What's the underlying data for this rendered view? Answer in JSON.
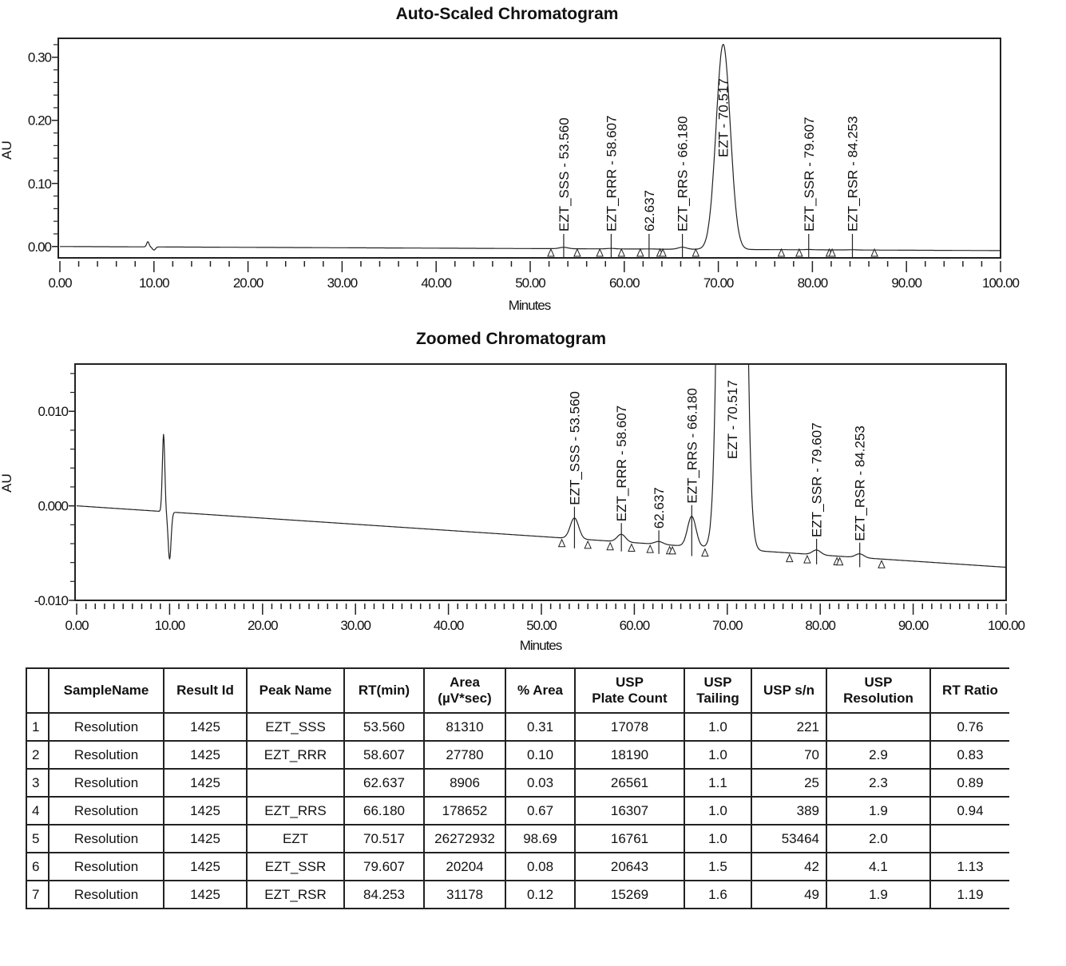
{
  "chart_data": [
    {
      "type": "line",
      "title": "Auto-Scaled Chromatogram",
      "xlabel": "Minutes",
      "ylabel": "AU",
      "xlim": [
        0,
        100
      ],
      "ylim": [
        -0.018,
        0.33
      ],
      "xticks": [
        "0.00",
        "10.00",
        "20.00",
        "30.00",
        "40.00",
        "50.00",
        "60.00",
        "70.00",
        "80.00",
        "90.00",
        "100.00"
      ],
      "yticks": [
        {
          "v": 0.0,
          "label": "0.00"
        },
        {
          "v": 0.1,
          "label": "0.10"
        },
        {
          "v": 0.2,
          "label": "0.20"
        },
        {
          "v": 0.3,
          "label": "0.30"
        }
      ],
      "grid": false,
      "baseline_au": [
        0.0,
        -0.0065
      ],
      "peaks": [
        {
          "label": "EZT_SSS - 53.560",
          "rt": 53.56,
          "height": 0.0022
        },
        {
          "label": "EZT_RRR - 58.607",
          "rt": 58.607,
          "height": 0.0008
        },
        {
          "label": "62.637",
          "rt": 62.637,
          "height": 0.0003
        },
        {
          "label": "EZT_RRS - 66.180",
          "rt": 66.18,
          "height": 0.0032
        },
        {
          "label": "EZT - 70.517",
          "rt": 70.517,
          "height": 0.325
        },
        {
          "label": "EZT_SSR - 79.607",
          "rt": 79.607,
          "height": 0.0005
        },
        {
          "label": "EZT_RSR - 84.253",
          "rt": 84.253,
          "height": 0.0004
        }
      ],
      "integration_marks": [
        52.2,
        55.0,
        57.4,
        59.7,
        61.7,
        63.8,
        64.1,
        67.6,
        76.7,
        78.6,
        81.8,
        82.1,
        86.6
      ]
    },
    {
      "type": "line",
      "title": "Zoomed Chromatogram",
      "xlabel": "Minutes",
      "ylabel": "AU",
      "xlim": [
        0,
        100
      ],
      "ylim": [
        -0.01,
        0.015
      ],
      "xticks": [
        "0.00",
        "10.00",
        "20.00",
        "30.00",
        "40.00",
        "50.00",
        "60.00",
        "70.00",
        "80.00",
        "90.00",
        "100.00"
      ],
      "yticks": [
        {
          "v": -0.01,
          "label": "-0.010"
        },
        {
          "v": 0.0,
          "label": "0.000"
        },
        {
          "v": 0.01,
          "label": "0.010"
        }
      ],
      "grid": false,
      "baseline_au": [
        0.0,
        -0.0065
      ],
      "peaks": [
        {
          "label": "EZT_SSS - 53.560",
          "rt": 53.56,
          "height": 0.0022
        },
        {
          "label": "EZT_RRR - 58.607",
          "rt": 58.607,
          "height": 0.0008
        },
        {
          "label": "62.637",
          "rt": 62.637,
          "height": 0.0003
        },
        {
          "label": "EZT_RRS - 66.180",
          "rt": 66.18,
          "height": 0.0032
        },
        {
          "label": "EZT - 70.517",
          "rt": 70.517,
          "height": 0.325
        },
        {
          "label": "EZT_SSR - 79.607",
          "rt": 79.607,
          "height": 0.0005
        },
        {
          "label": "EZT_RSR - 84.253",
          "rt": 84.253,
          "height": 0.0004
        }
      ],
      "integration_marks": [
        52.2,
        55.0,
        57.4,
        59.7,
        61.7,
        63.8,
        64.1,
        67.6,
        76.7,
        78.6,
        81.8,
        82.1,
        86.6
      ]
    }
  ],
  "table": {
    "headers": [
      "",
      "SampleName",
      "Result Id",
      "Peak Name",
      "RT(min)",
      "Area\n(µV*sec)",
      "% Area",
      "USP\nPlate Count",
      "USP\nTailing",
      "USP s/n",
      "USP\nResolution",
      "RT Ratio"
    ],
    "rows": [
      [
        "1",
        "Resolution",
        "1425",
        "EZT_SSS",
        "53.560",
        "81310",
        "0.31",
        "17078",
        "1.0",
        "221",
        "",
        "0.76"
      ],
      [
        "2",
        "Resolution",
        "1425",
        "EZT_RRR",
        "58.607",
        "27780",
        "0.10",
        "18190",
        "1.0",
        "70",
        "2.9",
        "0.83"
      ],
      [
        "3",
        "Resolution",
        "1425",
        "",
        "62.637",
        "8906",
        "0.03",
        "26561",
        "1.1",
        "25",
        "2.3",
        "0.89"
      ],
      [
        "4",
        "Resolution",
        "1425",
        "EZT_RRS",
        "66.180",
        "178652",
        "0.67",
        "16307",
        "1.0",
        "389",
        "1.9",
        "0.94"
      ],
      [
        "5",
        "Resolution",
        "1425",
        "EZT",
        "70.517",
        "26272932",
        "98.69",
        "16761",
        "1.0",
        "53464",
        "2.0",
        ""
      ],
      [
        "6",
        "Resolution",
        "1425",
        "EZT_SSR",
        "79.607",
        "20204",
        "0.08",
        "20643",
        "1.5",
        "42",
        "4.1",
        "1.13"
      ],
      [
        "7",
        "Resolution",
        "1425",
        "EZT_RSR",
        "84.253",
        "31178",
        "0.12",
        "15269",
        "1.6",
        "49",
        "1.9",
        "1.19"
      ]
    ]
  }
}
